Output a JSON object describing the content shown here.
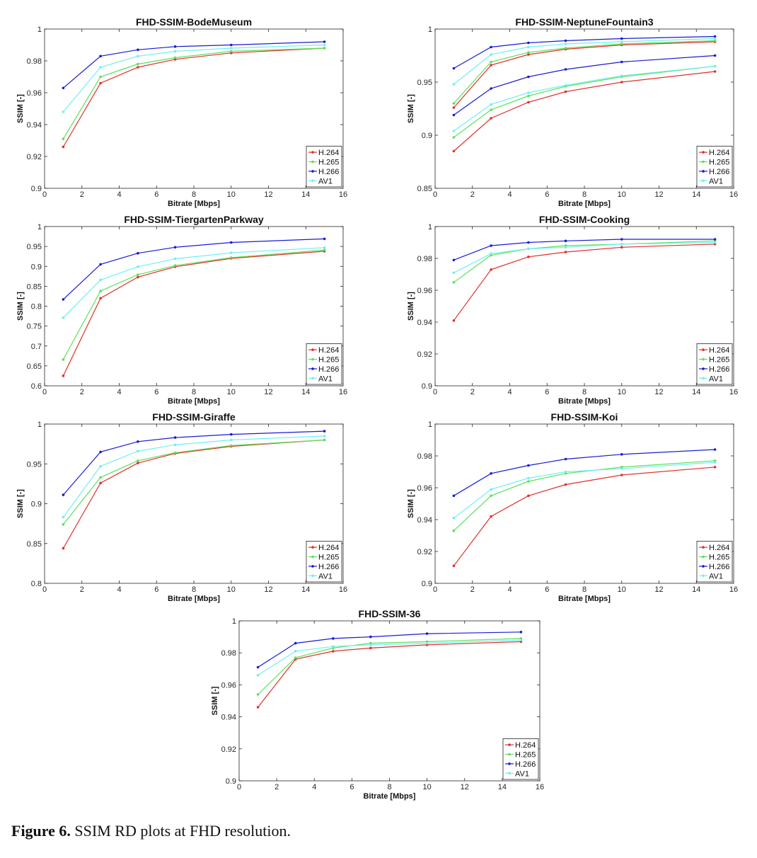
{
  "caption": {
    "label": "Figure 6.",
    "text": "SSIM RD plots at FHD resolution."
  },
  "colors": {
    "H.264": "#e0302a",
    "H.265": "#5ee05a",
    "H.266": "#1a1ad6",
    "AV1": "#6ef0f0"
  },
  "chart_data": [
    {
      "type": "line",
      "title": "FHD-SSIM-BodeMuseum",
      "xlabel": "Bitrate [Mbps]",
      "ylabel": "SSIM [-]",
      "xlim": [
        0,
        16
      ],
      "ylim": [
        0.9,
        1
      ],
      "xticks": [
        0,
        2,
        4,
        6,
        8,
        10,
        12,
        14,
        16
      ],
      "yticks": [
        0.9,
        0.92,
        0.94,
        0.96,
        0.98,
        1
      ],
      "ytick_labels": [
        "0.9",
        "0.92",
        "0.94",
        "0.96",
        "0.98",
        "1"
      ],
      "x": [
        1,
        3,
        5,
        7,
        10,
        15
      ],
      "series": [
        {
          "name": "H.264",
          "values": [
            0.926,
            0.966,
            0.976,
            0.981,
            0.985,
            0.988
          ]
        },
        {
          "name": "H.265",
          "values": [
            0.931,
            0.97,
            0.978,
            0.982,
            0.986,
            0.988
          ]
        },
        {
          "name": "H.266",
          "values": [
            0.963,
            0.983,
            0.987,
            0.989,
            0.99,
            0.992
          ]
        },
        {
          "name": "AV1",
          "values": [
            0.948,
            0.976,
            0.983,
            0.986,
            0.988,
            0.99
          ]
        }
      ],
      "legend": "bottom-right"
    },
    {
      "type": "line",
      "title": "FHD-SSIM-NeptuneFountain3",
      "xlabel": "Bitrate [Mbps]",
      "ylabel": "SSIM [-]",
      "xlim": [
        0,
        16
      ],
      "ylim": [
        0.85,
        1
      ],
      "xticks": [
        0,
        2,
        4,
        6,
        8,
        10,
        12,
        14,
        16
      ],
      "yticks": [
        0.85,
        0.9,
        0.95,
        1
      ],
      "ytick_labels": [
        "0.85",
        "0.9",
        "0.95",
        "1"
      ],
      "x": [
        1,
        3,
        5,
        7,
        10,
        15
      ],
      "series": [
        {
          "name": "H.264",
          "values": [
            0.926,
            0.966,
            0.976,
            0.981,
            0.985,
            0.988
          ]
        },
        {
          "name": "H.265",
          "values": [
            0.93,
            0.969,
            0.978,
            0.982,
            0.986,
            0.989
          ]
        },
        {
          "name": "H.266",
          "values": [
            0.963,
            0.983,
            0.987,
            0.989,
            0.991,
            0.993
          ]
        },
        {
          "name": "AV1",
          "values": [
            0.948,
            0.976,
            0.983,
            0.986,
            0.988,
            0.991
          ]
        },
        {
          "name": "H.264",
          "values": [
            0.885,
            0.916,
            0.931,
            0.941,
            0.95,
            0.96
          ]
        },
        {
          "name": "H.265",
          "values": [
            0.898,
            0.924,
            0.937,
            0.946,
            0.955,
            0.965
          ]
        },
        {
          "name": "H.266",
          "values": [
            0.919,
            0.944,
            0.955,
            0.962,
            0.969,
            0.975
          ]
        },
        {
          "name": "AV1",
          "values": [
            0.904,
            0.929,
            0.94,
            0.947,
            0.956,
            0.965
          ]
        }
      ],
      "legend": "bottom-right"
    },
    {
      "type": "line",
      "title": "FHD-SSIM-TiergartenParkway",
      "xlabel": "Bitrate [Mbps]",
      "ylabel": "SSIM [-]",
      "xlim": [
        0,
        16
      ],
      "ylim": [
        0.6,
        1
      ],
      "xticks": [
        0,
        2,
        4,
        6,
        8,
        10,
        12,
        14,
        16
      ],
      "yticks": [
        0.6,
        0.65,
        0.7,
        0.75,
        0.8,
        0.85,
        0.9,
        0.95,
        1
      ],
      "ytick_labels": [
        "0.6",
        "0.65",
        "0.7",
        "0.75",
        "0.8",
        "0.85",
        "0.9",
        "0.95",
        "1"
      ],
      "x": [
        1,
        3,
        5,
        7,
        10,
        15
      ],
      "series": [
        {
          "name": "H.264",
          "values": [
            0.625,
            0.82,
            0.873,
            0.899,
            0.92,
            0.938
          ]
        },
        {
          "name": "H.265",
          "values": [
            0.666,
            0.838,
            0.879,
            0.902,
            0.922,
            0.941
          ]
        },
        {
          "name": "H.266",
          "values": [
            0.817,
            0.905,
            0.933,
            0.948,
            0.96,
            0.969
          ]
        },
        {
          "name": "AV1",
          "values": [
            0.771,
            0.866,
            0.899,
            0.919,
            0.934,
            0.947
          ]
        }
      ],
      "legend": "bottom-right"
    },
    {
      "type": "line",
      "title": "FHD-SSIM-Cooking",
      "xlabel": "Bitrate [Mbps]",
      "ylabel": "SSIM [-]",
      "xlim": [
        0,
        16
      ],
      "ylim": [
        0.9,
        1
      ],
      "xticks": [
        0,
        2,
        4,
        6,
        8,
        10,
        12,
        14,
        16
      ],
      "yticks": [
        0.9,
        0.92,
        0.94,
        0.96,
        0.98,
        1
      ],
      "ytick_labels": [
        "0.9",
        "0.92",
        "0.94",
        "0.96",
        "0.98",
        "1"
      ],
      "x": [
        1,
        3,
        5,
        7,
        10,
        15
      ],
      "series": [
        {
          "name": "H.264",
          "values": [
            0.941,
            0.973,
            0.981,
            0.984,
            0.987,
            0.989
          ]
        },
        {
          "name": "H.265",
          "values": [
            0.965,
            0.982,
            0.986,
            0.988,
            0.989,
            0.991
          ]
        },
        {
          "name": "H.266",
          "values": [
            0.979,
            0.988,
            0.99,
            0.991,
            0.992,
            0.992
          ]
        },
        {
          "name": "AV1",
          "values": [
            0.971,
            0.983,
            0.986,
            0.987,
            0.989,
            0.99
          ]
        }
      ],
      "legend": "bottom-right"
    },
    {
      "type": "line",
      "title": "FHD-SSIM-Giraffe",
      "xlabel": "Bitrate [Mbps]",
      "ylabel": "SSIM [-]",
      "xlim": [
        0,
        16
      ],
      "ylim": [
        0.8,
        1
      ],
      "xticks": [
        0,
        2,
        4,
        6,
        8,
        10,
        12,
        14,
        16
      ],
      "yticks": [
        0.8,
        0.85,
        0.9,
        0.95,
        1
      ],
      "ytick_labels": [
        "0.8",
        "0.85",
        "0.9",
        "0.95",
        "1"
      ],
      "x": [
        1,
        3,
        5,
        7,
        10,
        15
      ],
      "series": [
        {
          "name": "H.264",
          "values": [
            0.844,
            0.926,
            0.951,
            0.963,
            0.972,
            0.98
          ]
        },
        {
          "name": "H.265",
          "values": [
            0.874,
            0.933,
            0.954,
            0.964,
            0.973,
            0.98
          ]
        },
        {
          "name": "H.266",
          "values": [
            0.911,
            0.965,
            0.978,
            0.983,
            0.987,
            0.991
          ]
        },
        {
          "name": "AV1",
          "values": [
            0.883,
            0.947,
            0.966,
            0.974,
            0.98,
            0.985
          ]
        }
      ],
      "legend": "bottom-right"
    },
    {
      "type": "line",
      "title": "FHD-SSIM-Koi",
      "xlabel": "Bitrate [Mbps]",
      "ylabel": "SSIM [-]",
      "xlim": [
        0,
        16
      ],
      "ylim": [
        0.9,
        1
      ],
      "xticks": [
        0,
        2,
        4,
        6,
        8,
        10,
        12,
        14,
        16
      ],
      "yticks": [
        0.9,
        0.92,
        0.94,
        0.96,
        0.98,
        1
      ],
      "ytick_labels": [
        "0.9",
        "0.92",
        "0.94",
        "0.96",
        "0.98",
        "1"
      ],
      "x": [
        1,
        3,
        5,
        7,
        10,
        15
      ],
      "series": [
        {
          "name": "H.264",
          "values": [
            0.911,
            0.942,
            0.955,
            0.962,
            0.968,
            0.973
          ]
        },
        {
          "name": "H.265",
          "values": [
            0.933,
            0.955,
            0.964,
            0.969,
            0.973,
            0.977
          ]
        },
        {
          "name": "H.266",
          "values": [
            0.955,
            0.969,
            0.974,
            0.978,
            0.981,
            0.984
          ]
        },
        {
          "name": "AV1",
          "values": [
            0.941,
            0.959,
            0.966,
            0.97,
            0.972,
            0.976
          ]
        }
      ],
      "legend": "bottom-right"
    },
    {
      "type": "line",
      "title": "FHD-SSIM-36",
      "xlabel": "Bitrate [Mbps]",
      "ylabel": "SSIM [-]",
      "xlim": [
        0,
        16
      ],
      "ylim": [
        0.9,
        1
      ],
      "xticks": [
        0,
        2,
        4,
        6,
        8,
        10,
        12,
        14,
        16
      ],
      "yticks": [
        0.9,
        0.92,
        0.94,
        0.96,
        0.98,
        1
      ],
      "ytick_labels": [
        "0.9",
        "0.92",
        "0.94",
        "0.96",
        "0.98",
        "1"
      ],
      "x": [
        1,
        3,
        5,
        7,
        10,
        15
      ],
      "series": [
        {
          "name": "H.264",
          "values": [
            0.946,
            0.976,
            0.981,
            0.983,
            0.985,
            0.987
          ]
        },
        {
          "name": "H.265",
          "values": [
            0.954,
            0.977,
            0.983,
            0.986,
            0.987,
            0.989
          ]
        },
        {
          "name": "H.266",
          "values": [
            0.971,
            0.986,
            0.989,
            0.99,
            0.992,
            0.993
          ]
        },
        {
          "name": "AV1",
          "values": [
            0.966,
            0.981,
            0.984,
            0.985,
            0.986,
            0.988
          ]
        }
      ],
      "legend": "bottom-right"
    }
  ]
}
